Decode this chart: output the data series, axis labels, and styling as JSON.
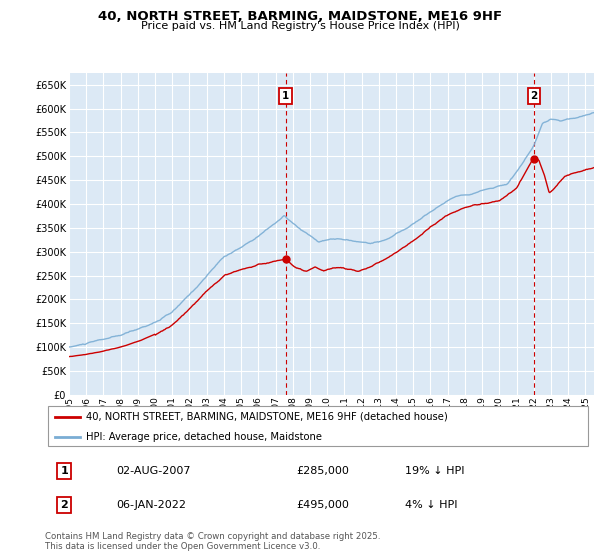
{
  "title": "40, NORTH STREET, BARMING, MAIDSTONE, ME16 9HF",
  "subtitle": "Price paid vs. HM Land Registry's House Price Index (HPI)",
  "ylim": [
    0,
    675000
  ],
  "yticks": [
    0,
    50000,
    100000,
    150000,
    200000,
    250000,
    300000,
    350000,
    400000,
    450000,
    500000,
    550000,
    600000,
    650000
  ],
  "xlim_start": 1995.0,
  "xlim_end": 2025.5,
  "background_color": "#dce9f5",
  "grid_color": "#ffffff",
  "red_line_color": "#cc0000",
  "blue_line_color": "#7aadd4",
  "transaction1_x": 2007.586,
  "transaction1_y": 285000,
  "transaction1_label": "1",
  "transaction1_date": "02-AUG-2007",
  "transaction1_price": "£285,000",
  "transaction1_note": "19% ↓ HPI",
  "transaction2_x": 2022.014,
  "transaction2_y": 495000,
  "transaction2_label": "2",
  "transaction2_date": "06-JAN-2022",
  "transaction2_price": "£495,000",
  "transaction2_note": "4% ↓ HPI",
  "legend_line1": "40, NORTH STREET, BARMING, MAIDSTONE, ME16 9HF (detached house)",
  "legend_line2": "HPI: Average price, detached house, Maidstone",
  "footer": "Contains HM Land Registry data © Crown copyright and database right 2025.\nThis data is licensed under the Open Government Licence v3.0.",
  "xtick_years": [
    1995,
    1996,
    1997,
    1998,
    1999,
    2000,
    2001,
    2002,
    2003,
    2004,
    2005,
    2006,
    2007,
    2008,
    2009,
    2010,
    2011,
    2012,
    2013,
    2014,
    2015,
    2016,
    2017,
    2018,
    2019,
    2020,
    2021,
    2022,
    2023,
    2024,
    2025
  ]
}
